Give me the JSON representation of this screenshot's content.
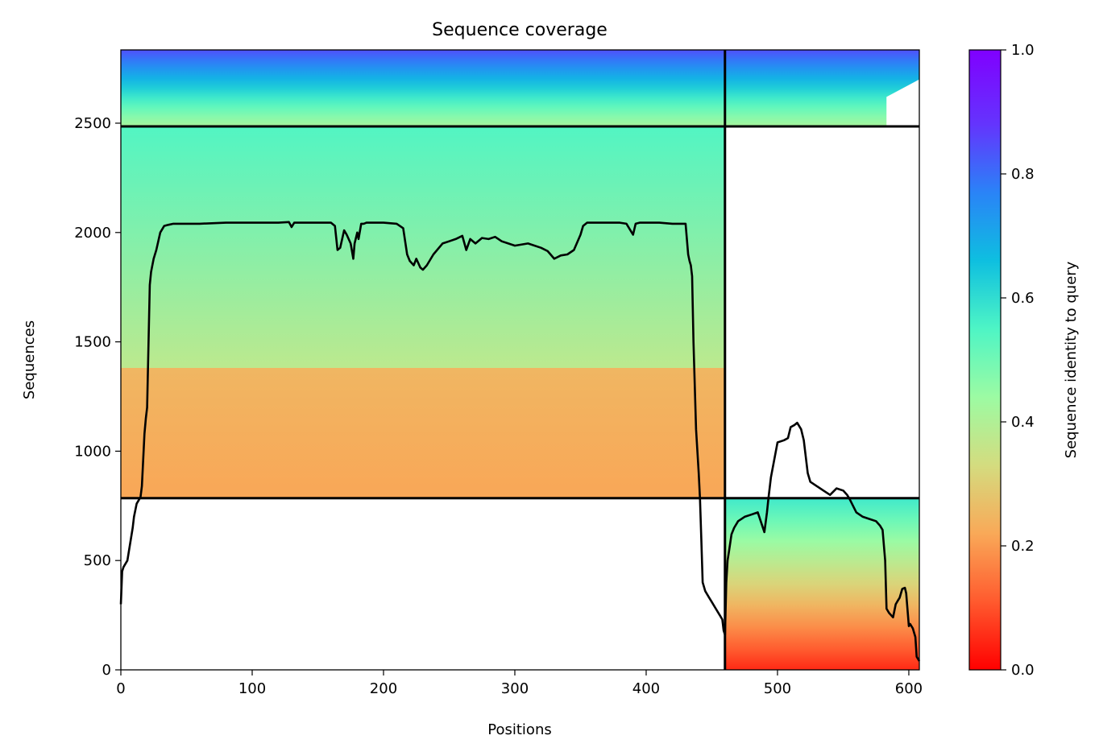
{
  "chart_data": {
    "type": "heatmap",
    "title": "Sequence coverage",
    "xlabel": "Positions",
    "ylabel": "Sequences",
    "xlim": [
      0,
      608
    ],
    "ylim": [
      0,
      2835
    ],
    "xticks": [
      0,
      100,
      200,
      300,
      400,
      500,
      600
    ],
    "yticks": [
      0,
      500,
      1000,
      1500,
      2000,
      2500
    ],
    "grid": false,
    "colorbar": {
      "label": "Sequence identity to query",
      "range": [
        0,
        1
      ],
      "ticks": [
        0.0,
        0.2,
        0.4,
        0.6,
        0.8,
        1.0
      ],
      "colormap": "rainbow_r",
      "colors": [
        "#ff0000",
        "#ff5a2e",
        "#f9a958",
        "#d4dc7f",
        "#9cfba3",
        "#4ef5c5",
        "#0ebfe0",
        "#2a83f7",
        "#6434fd",
        "#8000ff"
      ]
    },
    "separator_lines": {
      "vertical_x": [
        460
      ],
      "horizontal_y": [
        785,
        2485
      ]
    },
    "blocks": [
      {
        "name": "block-top",
        "x_range": [
          0,
          608
        ],
        "y_range": [
          2485,
          2835
        ],
        "identity_top": 0.85,
        "identity_bottom": 0.42,
        "right_edge": [
          [
            2485,
            583
          ],
          [
            2620,
            583
          ],
          [
            2700,
            608
          ],
          [
            2835,
            608
          ]
        ]
      },
      {
        "name": "block-middle",
        "x_range": [
          0,
          460
        ],
        "y_range": [
          785,
          2485
        ],
        "identity_top": 0.55,
        "identity_bottom": 0.38,
        "identity_low_band": [
          0.25,
          0.22
        ],
        "low_band_below": 1380
      },
      {
        "name": "block-bottom",
        "x_range": [
          460,
          608
        ],
        "y_range": [
          0,
          785
        ],
        "identity_top": 0.58,
        "identity_bottom": 0.05
      }
    ],
    "coverage_line": {
      "name": "coverage",
      "color": "#000000",
      "x": [
        0,
        1,
        2,
        5,
        9,
        10,
        12,
        13,
        15,
        16,
        18,
        19,
        20,
        22,
        23,
        25,
        27,
        30,
        33,
        36,
        40,
        50,
        60,
        80,
        100,
        120,
        128,
        130,
        132,
        140,
        150,
        160,
        163,
        165,
        167,
        170,
        172,
        175,
        177,
        178,
        180,
        181,
        183,
        185,
        187,
        190,
        200,
        210,
        215,
        218,
        220,
        223,
        225,
        228,
        230,
        233,
        238,
        245,
        250,
        255,
        260,
        263,
        266,
        270,
        275,
        280,
        285,
        290,
        295,
        300,
        310,
        320,
        325,
        330,
        335,
        340,
        345,
        350,
        352,
        355,
        360,
        370,
        380,
        385,
        390,
        392,
        395,
        400,
        410,
        420,
        430,
        432,
        433,
        434,
        435,
        436,
        438,
        440,
        441,
        442,
        443,
        444,
        445,
        448,
        450,
        453,
        456,
        458,
        459,
        460,
        461,
        462,
        463,
        465,
        467,
        470,
        475,
        480,
        485,
        490,
        492,
        493,
        495,
        500,
        505,
        508,
        510,
        513,
        515,
        518,
        520,
        523,
        525,
        530,
        535,
        540,
        545,
        550,
        553,
        555,
        560,
        565,
        570,
        575,
        578,
        580,
        582,
        583,
        585,
        588,
        590,
        592,
        593,
        595,
        597,
        598,
        600,
        601,
        603,
        605,
        606,
        608
      ],
      "y": [
        300,
        450,
        470,
        500,
        650,
        700,
        760,
        770,
        790,
        840,
        1080,
        1150,
        1200,
        1760,
        1820,
        1880,
        1920,
        2000,
        2030,
        2035,
        2040,
        2040,
        2040,
        2045,
        2045,
        2045,
        2048,
        2025,
        2045,
        2045,
        2045,
        2045,
        2030,
        1920,
        1930,
        2010,
        1990,
        1950,
        1880,
        1950,
        2000,
        1970,
        2040,
        2040,
        2045,
        2045,
        2045,
        2040,
        2020,
        1900,
        1870,
        1850,
        1880,
        1840,
        1830,
        1850,
        1900,
        1950,
        1960,
        1970,
        1985,
        1920,
        1970,
        1950,
        1975,
        1970,
        1980,
        1960,
        1950,
        1940,
        1950,
        1930,
        1915,
        1880,
        1895,
        1900,
        1920,
        1990,
        2030,
        2045,
        2045,
        2045,
        2045,
        2040,
        1990,
        2040,
        2045,
        2045,
        2045,
        2040,
        2040,
        1900,
        1870,
        1850,
        1800,
        1500,
        1100,
        900,
        780,
        600,
        400,
        380,
        360,
        330,
        310,
        280,
        250,
        230,
        180,
        160,
        400,
        500,
        540,
        620,
        650,
        680,
        700,
        710,
        720,
        630,
        720,
        780,
        880,
        1040,
        1050,
        1060,
        1110,
        1120,
        1130,
        1100,
        1050,
        900,
        860,
        840,
        820,
        800,
        830,
        820,
        800,
        780,
        720,
        700,
        690,
        680,
        660,
        640,
        500,
        280,
        260,
        240,
        300,
        320,
        330,
        370,
        375,
        350,
        200,
        210,
        190,
        150,
        60,
        40
      ]
    }
  }
}
